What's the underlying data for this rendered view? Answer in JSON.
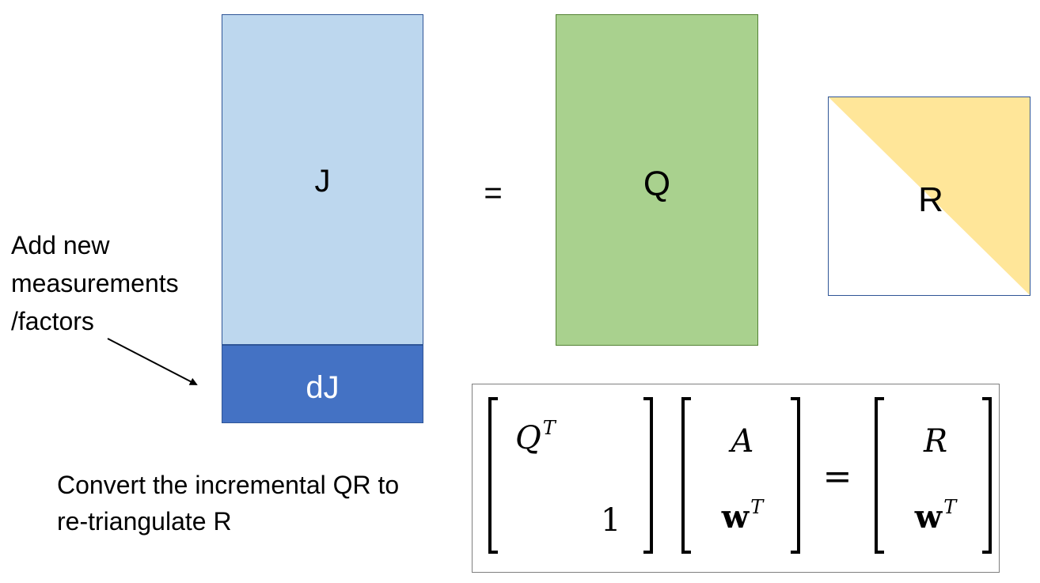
{
  "matrices": {
    "j_label": "J",
    "dj_label": "dJ",
    "equals": "=",
    "q_label": "Q",
    "r_label": "R"
  },
  "colors": {
    "j_fill": "#bdd7ee",
    "dj_fill": "#4472c4",
    "q_fill": "#a9d18e",
    "r_fill": "#ffe699"
  },
  "annotation": {
    "lines": [
      "Add new",
      "measurements",
      "/factors"
    ]
  },
  "caption": {
    "lines": [
      "Convert the incremental QR to",
      "re-triangulate R"
    ]
  },
  "equation": {
    "left_top": "Q",
    "left_top_sup": "T",
    "left_bottom": "1",
    "mid_top": "A",
    "mid_bottom": "w",
    "mid_bottom_sup": "T",
    "equals": "=",
    "right_top": "R",
    "right_bottom": "w",
    "right_bottom_sup": "T"
  }
}
